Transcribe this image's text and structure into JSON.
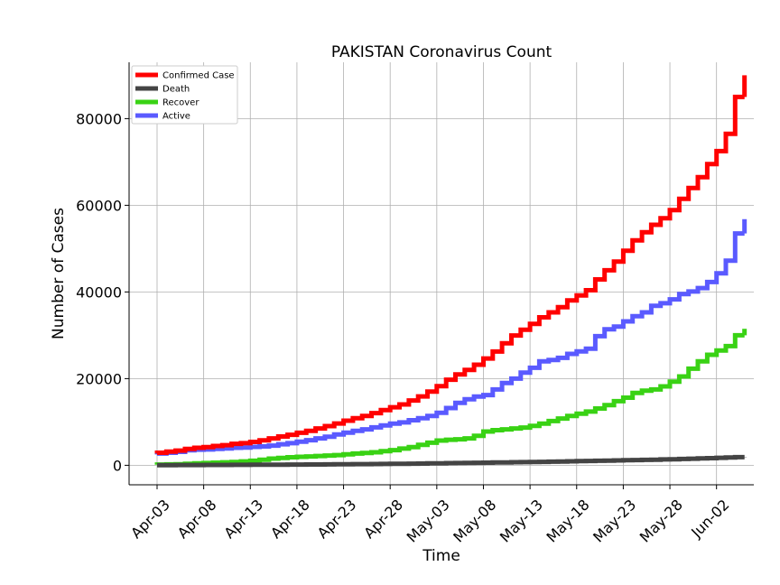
{
  "chart_data": {
    "type": "line",
    "title": "PAKISTAN Coronavirus Count",
    "xlabel": "Time",
    "ylabel": "Number of Cases",
    "xlim": [
      "2020-03-31",
      "2020-06-06"
    ],
    "ylim": [
      -4500,
      93000
    ],
    "x_ticks": [
      "Apr-03",
      "Apr-08",
      "Apr-13",
      "Apr-18",
      "Apr-23",
      "Apr-28",
      "May-03",
      "May-08",
      "May-13",
      "May-18",
      "May-23",
      "May-28",
      "Jun-02"
    ],
    "y_ticks": [
      "0",
      "20000",
      "40000",
      "60000",
      "80000"
    ],
    "grid": true,
    "legend_position": "top-left",
    "x": [
      "2020-04-03",
      "2020-04-04",
      "2020-04-05",
      "2020-04-06",
      "2020-04-07",
      "2020-04-08",
      "2020-04-09",
      "2020-04-10",
      "2020-04-11",
      "2020-04-12",
      "2020-04-13",
      "2020-04-14",
      "2020-04-15",
      "2020-04-16",
      "2020-04-17",
      "2020-04-18",
      "2020-04-19",
      "2020-04-20",
      "2020-04-21",
      "2020-04-22",
      "2020-04-23",
      "2020-04-24",
      "2020-04-25",
      "2020-04-26",
      "2020-04-27",
      "2020-04-28",
      "2020-04-29",
      "2020-04-30",
      "2020-05-01",
      "2020-05-02",
      "2020-05-03",
      "2020-05-04",
      "2020-05-05",
      "2020-05-06",
      "2020-05-07",
      "2020-05-08",
      "2020-05-09",
      "2020-05-10",
      "2020-05-11",
      "2020-05-12",
      "2020-05-13",
      "2020-05-14",
      "2020-05-15",
      "2020-05-16",
      "2020-05-17",
      "2020-05-18",
      "2020-05-19",
      "2020-05-20",
      "2020-05-21",
      "2020-05-22",
      "2020-05-23",
      "2020-05-24",
      "2020-05-25",
      "2020-05-26",
      "2020-05-27",
      "2020-05-28",
      "2020-05-29",
      "2020-05-30",
      "2020-05-31",
      "2020-06-01",
      "2020-06-02",
      "2020-06-03",
      "2020-06-04",
      "2020-06-05"
    ],
    "series": [
      {
        "name": "Confirmed Case",
        "color": "#ff0000",
        "values": [
          2700,
          2900,
          3150,
          3400,
          3800,
          4050,
          4200,
          4450,
          4650,
          4950,
          5100,
          5400,
          5750,
          6200,
          6650,
          7050,
          7500,
          7950,
          8500,
          9050,
          9650,
          10300,
          10850,
          11400,
          12050,
          12750,
          13400,
          14050,
          14950,
          15900,
          17000,
          18250,
          19750,
          20950,
          22000,
          23200,
          24650,
          26250,
          28150,
          29950,
          31300,
          32650,
          34150,
          35300,
          36500,
          38050,
          39200,
          40400,
          42900,
          45000,
          47000,
          49500,
          51900,
          53800,
          55500,
          57000,
          58900,
          61500,
          64000,
          66500,
          69500,
          72500,
          76500,
          85000
        ]
      },
      {
        "name": "Death",
        "color": "#444444",
        "values": [
          40,
          45,
          50,
          55,
          60,
          65,
          75,
          85,
          90,
          100,
          110,
          120,
          130,
          140,
          150,
          160,
          170,
          180,
          195,
          210,
          230,
          250,
          265,
          280,
          295,
          310,
          330,
          350,
          375,
          400,
          430,
          460,
          490,
          520,
          550,
          580,
          610,
          640,
          670,
          700,
          730,
          760,
          800,
          840,
          880,
          920,
          960,
          1000,
          1040,
          1080,
          1120,
          1160,
          1200,
          1250,
          1300,
          1350,
          1400,
          1450,
          1520,
          1580,
          1650,
          1720,
          1800,
          1880
        ]
      },
      {
        "name": "Recover",
        "color": "#39d214",
        "values": [
          150,
          170,
          200,
          250,
          350,
          450,
          520,
          600,
          680,
          780,
          900,
          1050,
          1300,
          1550,
          1700,
          1850,
          1950,
          2050,
          2150,
          2250,
          2350,
          2550,
          2700,
          2850,
          3000,
          3250,
          3500,
          3850,
          4200,
          4700,
          5200,
          5700,
          5900,
          6000,
          6200,
          6800,
          7800,
          8100,
          8300,
          8500,
          8700,
          9100,
          9600,
          10200,
          10800,
          11400,
          11900,
          12400,
          13100,
          13900,
          14800,
          15600,
          16700,
          17200,
          17500,
          18200,
          19300,
          20500,
          22300,
          24000,
          25500,
          26500,
          27500,
          30000
        ]
      },
      {
        "name": "Active",
        "color": "#5a5aff",
        "values": [
          2500,
          2700,
          2900,
          3100,
          3450,
          3600,
          3650,
          3800,
          3900,
          4050,
          4100,
          4250,
          4350,
          4550,
          4850,
          5100,
          5450,
          5800,
          6200,
          6600,
          7100,
          7550,
          7950,
          8300,
          8750,
          9200,
          9600,
          9900,
          10400,
          10850,
          11400,
          12100,
          13200,
          14400,
          15250,
          15850,
          16200,
          17500,
          19000,
          20000,
          21400,
          22500,
          24000,
          24300,
          24800,
          25700,
          26300,
          26900,
          29800,
          31400,
          32000,
          33200,
          34400,
          35300,
          36800,
          37400,
          38300,
          39500,
          40100,
          40900,
          42300,
          44300,
          47200,
          53500
        ]
      }
    ]
  }
}
